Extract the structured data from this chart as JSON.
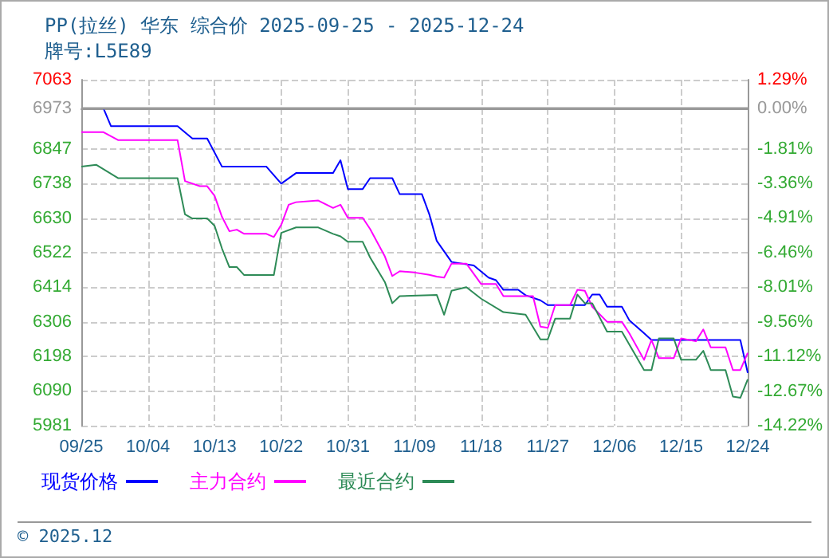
{
  "chart_data": {
    "type": "line",
    "title": "PP(拉丝) 华东 综合价 2025-09-25 - 2025-12-24",
    "subtitle": "牌号:L5E89",
    "annotations": [
      "© 2025.12"
    ],
    "xlim": [
      "2025-09-25",
      "2025-12-24"
    ],
    "xticks": [
      {
        "value": "2025-09-25",
        "label": "09/25"
      },
      {
        "value": "2025-10-04",
        "label": "10/04"
      },
      {
        "value": "2025-10-13",
        "label": "10/13"
      },
      {
        "value": "2025-10-22",
        "label": "10/22"
      },
      {
        "value": "2025-10-31",
        "label": "10/31"
      },
      {
        "value": "2025-11-09",
        "label": "11/09"
      },
      {
        "value": "2025-11-18",
        "label": "11/18"
      },
      {
        "value": "2025-11-27",
        "label": "11/27"
      },
      {
        "value": "2025-12-06",
        "label": "12/06"
      },
      {
        "value": "2025-12-15",
        "label": "12/15"
      },
      {
        "value": "2025-12-24",
        "label": "12/24"
      }
    ],
    "ylim": [
      5981,
      7063
    ],
    "yticks": [
      7063,
      6973,
      6847,
      6738,
      6630,
      6522,
      6414,
      6306,
      6198,
      6090,
      5981
    ],
    "y2lim": [
      -14.22,
      1.29
    ],
    "y2ticks": [
      {
        "value": 1.29,
        "label": "1.29%"
      },
      {
        "value": 0,
        "label": "0.00%"
      },
      {
        "value": -1.81,
        "label": "-1.81%"
      },
      {
        "value": -3.36,
        "label": "-3.36%"
      },
      {
        "value": -4.91,
        "label": "-4.91%"
      },
      {
        "value": -6.46,
        "label": "-6.46%"
      },
      {
        "value": -8.01,
        "label": "-8.01%"
      },
      {
        "value": -9.56,
        "label": "-9.56%"
      },
      {
        "value": -11.12,
        "label": "-11.12%"
      },
      {
        "value": -12.67,
        "label": "-12.67%"
      },
      {
        "value": -14.22,
        "label": "-14.22%"
      }
    ],
    "ref_lines": [
      {
        "axis": "y",
        "value": 6973,
        "color": "#999999"
      }
    ],
    "grid": true,
    "legend": "bottom",
    "marker": "none",
    "line_style": "solid",
    "series": [
      {
        "name": "现货价格",
        "color": "#0000ff",
        "x": [
          "2025-09-25",
          "2025-09-28",
          "2025-09-29",
          "2025-10-08",
          "2025-10-10",
          "2025-10-12",
          "2025-10-14",
          "2025-10-20",
          "2025-10-22",
          "2025-10-24",
          "2025-10-29",
          "2025-10-30",
          "2025-10-31",
          "2025-11-02",
          "2025-11-03",
          "2025-11-06",
          "2025-11-07",
          "2025-11-10",
          "2025-11-11",
          "2025-11-12",
          "2025-11-14",
          "2025-11-17",
          "2025-11-19",
          "2025-11-20",
          "2025-11-21",
          "2025-11-23",
          "2025-11-24",
          "2025-11-26",
          "2025-11-27",
          "2025-12-02",
          "2025-12-03",
          "2025-12-04",
          "2025-12-05",
          "2025-12-07",
          "2025-12-08",
          "2025-12-10",
          "2025-12-11",
          "2025-12-23",
          "2025-12-24"
        ],
        "values": [
          6973,
          6973,
          6918,
          6918,
          6879,
          6879,
          6791,
          6791,
          6738,
          6771,
          6771,
          6811,
          6721,
          6721,
          6755,
          6755,
          6705,
          6705,
          6642,
          6559,
          6493,
          6482,
          6444,
          6436,
          6406,
          6406,
          6389,
          6373,
          6358,
          6358,
          6391,
          6391,
          6353,
          6353,
          6311,
          6270,
          6249,
          6249,
          6146
        ]
      },
      {
        "name": "主力合约",
        "color": "#ff00ff",
        "x": [
          "2025-09-25",
          "2025-09-28",
          "2025-09-30",
          "2025-10-08",
          "2025-10-09",
          "2025-10-11",
          "2025-10-12",
          "2025-10-13",
          "2025-10-14",
          "2025-10-15",
          "2025-10-16",
          "2025-10-17",
          "2025-10-20",
          "2025-10-21",
          "2025-10-22",
          "2025-10-23",
          "2025-10-24",
          "2025-10-27",
          "2025-10-29",
          "2025-10-30",
          "2025-10-31",
          "2025-11-02",
          "2025-11-03",
          "2025-11-05",
          "2025-11-06",
          "2025-11-07",
          "2025-11-09",
          "2025-11-11",
          "2025-11-12",
          "2025-11-13",
          "2025-11-14",
          "2025-11-16",
          "2025-11-18",
          "2025-11-20",
          "2025-11-21",
          "2025-11-25",
          "2025-11-26",
          "2025-11-27",
          "2025-11-28",
          "2025-11-30",
          "2025-12-01",
          "2025-12-02",
          "2025-12-03",
          "2025-12-05",
          "2025-12-07",
          "2025-12-08",
          "2025-12-10",
          "2025-12-11",
          "2025-12-12",
          "2025-12-14",
          "2025-12-15",
          "2025-12-17",
          "2025-12-18",
          "2025-12-19",
          "2025-12-21",
          "2025-12-22",
          "2025-12-23",
          "2025-12-24"
        ],
        "values": [
          6899,
          6899,
          6874,
          6874,
          6746,
          6730,
          6730,
          6700,
          6634,
          6589,
          6594,
          6581,
          6581,
          6571,
          6609,
          6672,
          6680,
          6685,
          6662,
          6672,
          6631,
          6631,
          6596,
          6510,
          6449,
          6464,
          6460,
          6453,
          6447,
          6444,
          6488,
          6488,
          6424,
          6424,
          6386,
          6386,
          6291,
          6287,
          6358,
          6358,
          6406,
          6403,
          6353,
          6306,
          6306,
          6270,
          6187,
          6249,
          6192,
          6192,
          6254,
          6245,
          6282,
          6226,
          6226,
          6155,
          6155,
          6209
        ]
      },
      {
        "name": "最近合约",
        "color": "#2e8b57",
        "x": [
          "2025-09-25",
          "2025-09-27",
          "2025-09-30",
          "2025-10-08",
          "2025-10-09",
          "2025-10-10",
          "2025-10-12",
          "2025-10-13",
          "2025-10-14",
          "2025-10-15",
          "2025-10-16",
          "2025-10-17",
          "2025-10-21",
          "2025-10-22",
          "2025-10-24",
          "2025-10-27",
          "2025-10-29",
          "2025-10-30",
          "2025-10-31",
          "2025-11-02",
          "2025-11-03",
          "2025-11-05",
          "2025-11-06",
          "2025-11-07",
          "2025-11-12",
          "2025-11-13",
          "2025-11-14",
          "2025-11-16",
          "2025-11-18",
          "2025-11-21",
          "2025-11-24",
          "2025-11-26",
          "2025-11-27",
          "2025-11-28",
          "2025-11-30",
          "2025-12-01",
          "2025-12-02",
          "2025-12-03",
          "2025-12-05",
          "2025-12-07",
          "2025-12-10",
          "2025-12-11",
          "2025-12-12",
          "2025-12-14",
          "2025-12-15",
          "2025-12-17",
          "2025-12-18",
          "2025-12-19",
          "2025-12-21",
          "2025-12-22",
          "2025-12-23",
          "2025-12-24"
        ],
        "values": [
          6791,
          6797,
          6755,
          6755,
          6642,
          6629,
          6629,
          6606,
          6535,
          6477,
          6477,
          6452,
          6452,
          6584,
          6601,
          6601,
          6581,
          6573,
          6556,
          6556,
          6507,
          6430,
          6364,
          6386,
          6390,
          6328,
          6403,
          6414,
          6378,
          6336,
          6328,
          6251,
          6251,
          6316,
          6316,
          6391,
          6364,
          6364,
          6275,
          6275,
          6155,
          6155,
          6254,
          6254,
          6187,
          6187,
          6215,
          6155,
          6155,
          6072,
          6068,
          6126
        ]
      }
    ]
  }
}
